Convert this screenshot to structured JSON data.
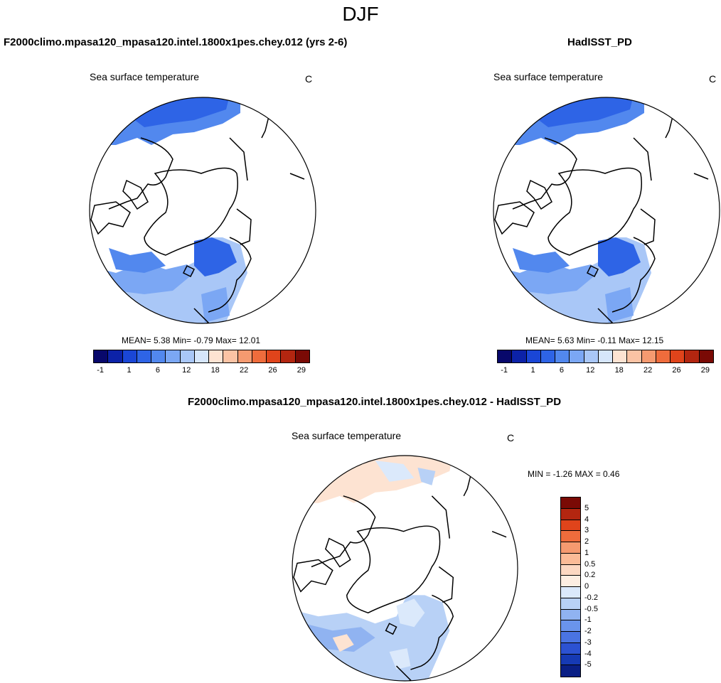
{
  "main_title": "DJF",
  "chart_data": [
    {
      "type": "heatmap",
      "header": "F2000climo.mpasa120_mpasa120.intel.1800x1pes.chey.012 (yrs 2-6)",
      "subtitle": "Sea surface temperature",
      "units": "C",
      "stats": {
        "label": "MEAN=   5.38  Min=  -0.79  Max=  12.01",
        "mean": 5.38,
        "min": -0.79,
        "max": 12.01
      },
      "colorbar": {
        "ticks": [
          "-1",
          "1",
          "6",
          "12",
          "18",
          "22",
          "26",
          "29"
        ]
      }
    },
    {
      "type": "heatmap",
      "header": "HadISST_PD",
      "subtitle": "Sea surface temperature",
      "units": "C",
      "stats": {
        "label": "MEAN=   5.63  Min=  -0.11  Max=  12.15",
        "mean": 5.63,
        "min": -0.11,
        "max": 12.15
      },
      "colorbar": {
        "ticks": [
          "-1",
          "1",
          "6",
          "12",
          "18",
          "22",
          "26",
          "29"
        ]
      }
    },
    {
      "type": "heatmap",
      "header": "F2000climo.mpasa120_mpasa120.intel.1800x1pes.chey.012 - HadISST_PD",
      "subtitle": "Sea surface temperature",
      "units": "C",
      "stats": {
        "label": "MIN =  -1.26 MAX =   0.46",
        "min": -1.26,
        "max": 0.46
      },
      "colorbar": {
        "ticks": [
          "5",
          "4",
          "3",
          "2",
          "1",
          "0.5",
          "0.2",
          "0",
          "-0.2",
          "-0.5",
          "-1",
          "-2",
          "-3",
          "-4",
          "-5"
        ]
      }
    }
  ],
  "colors": {
    "abs_scale": [
      "#08086b",
      "#0c22a8",
      "#1a46d6",
      "#2e64e6",
      "#5288ee",
      "#7ba7f4",
      "#a9c7f7",
      "#d6e6fb",
      "#fde3d2",
      "#fbc3a4",
      "#f59a70",
      "#ef6c3c",
      "#e0441b",
      "#b32610",
      "#7a0a05"
    ],
    "diff_scale": [
      "#7a0a05",
      "#b32610",
      "#e0441b",
      "#ef6c3c",
      "#f59a70",
      "#fbbb97",
      "#fcd8c2",
      "#fdeee2",
      "#dbe9fb",
      "#b8d1f6",
      "#90b3f1",
      "#6a94ec",
      "#4a74e2",
      "#2c52d2",
      "#163ab4",
      "#0a1f85"
    ],
    "land": "#ffffff",
    "coast": "#000000"
  }
}
